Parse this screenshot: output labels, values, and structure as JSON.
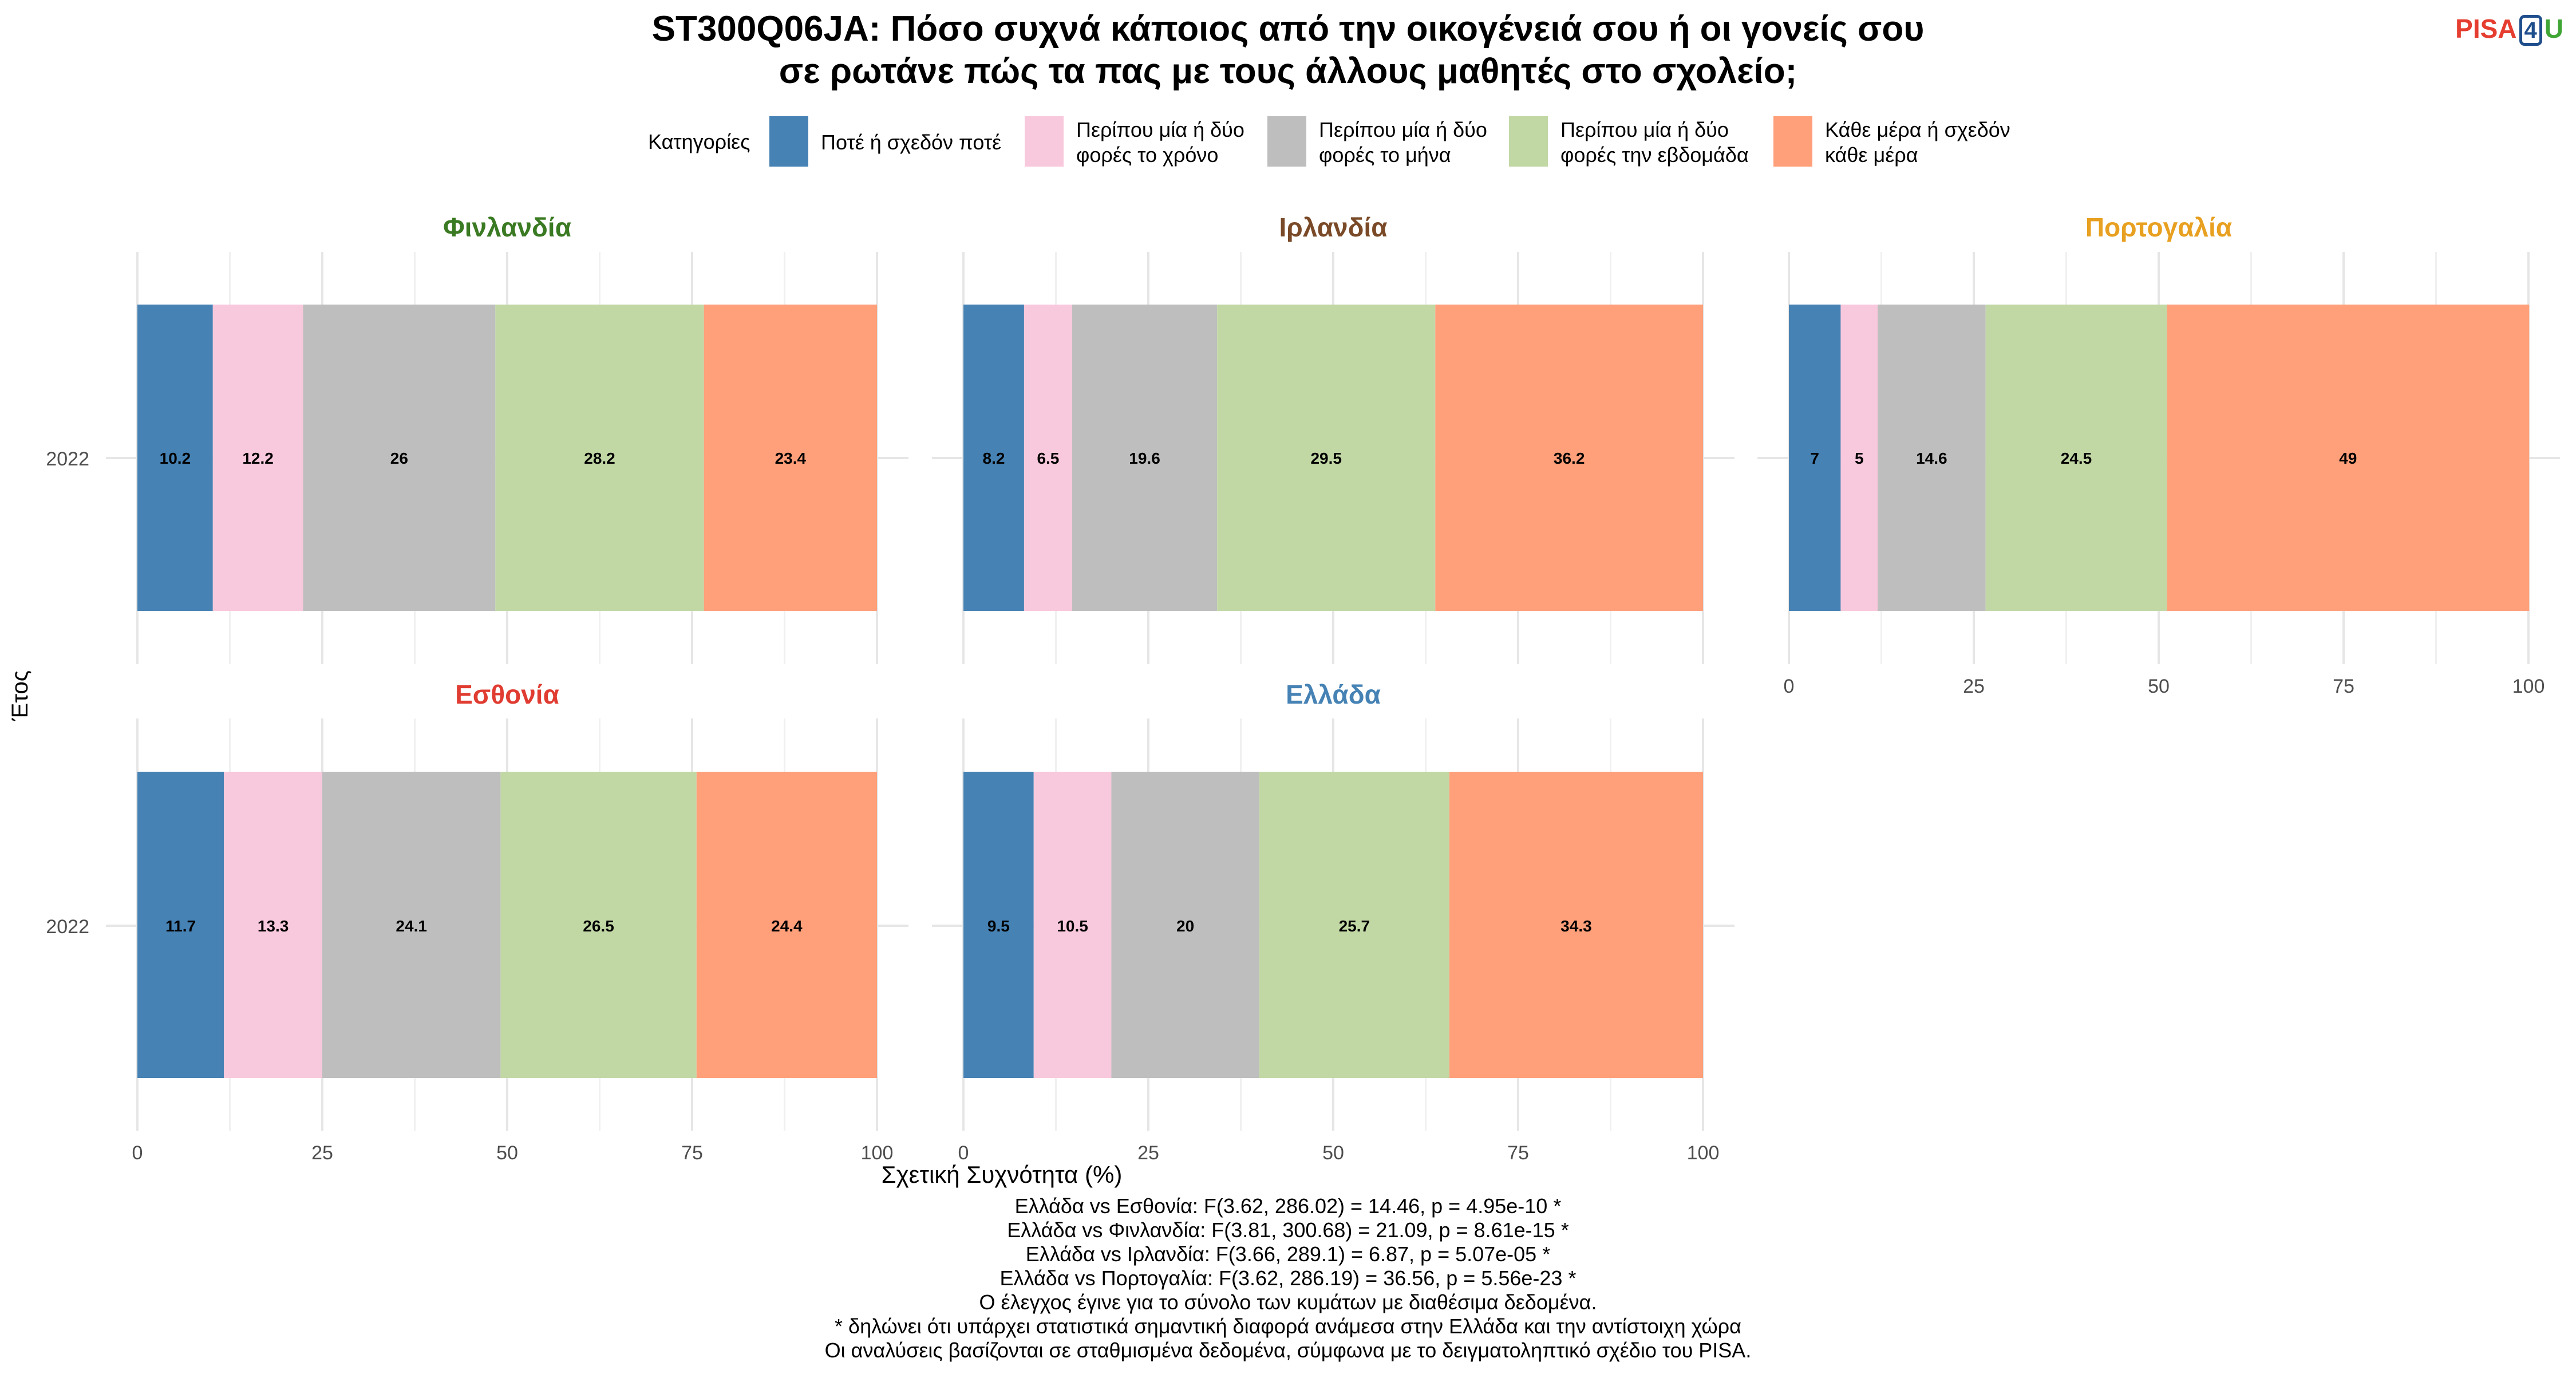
{
  "title_lines": [
    "ST300Q06JA: Πόσο συχνά κάποιος από την οικογένειά σου ή οι γονείς σου",
    "σε ρωτάνε πώς τα πας με τους άλλους μαθητές στο σχολείο;"
  ],
  "logo": {
    "pisa": "PISA",
    "four": "4",
    "u": "U"
  },
  "legend": {
    "title": "Κατηγορίες",
    "items": [
      {
        "label": "Ποτέ ή σχεδόν ποτέ",
        "color": "#4682b4"
      },
      {
        "label": "Περίπου μία ή δύο\nφορές το χρόνο",
        "color": "#f8c8dc"
      },
      {
        "label": "Περίπου μία ή δύο\nφορές το μήνα",
        "color": "#bebebe"
      },
      {
        "label": "Περίπου μία ή δύο\nφορές την εβδομάδα",
        "color": "#c1d8a5"
      },
      {
        "label": "Κάθε μέρα ή σχεδόν\nκάθε μέρα",
        "color": "#ffa07a"
      }
    ]
  },
  "chart_data": {
    "type": "bar",
    "orientation": "horizontal",
    "stacked": true,
    "xlabel": "Σχετική Συχνότητα (%)",
    "ylabel": "Έτος",
    "xlim": [
      0,
      100
    ],
    "xticks": [
      0,
      25,
      50,
      75,
      100
    ],
    "grid": true,
    "legend_position": "top",
    "categories": [
      "Ποτέ ή σχεδόν ποτέ",
      "Περίπου μία ή δύο φορές το χρόνο",
      "Περίπου μία ή δύο φορές το μήνα",
      "Περίπου μία ή δύο φορές την εβδομάδα",
      "Κάθε μέρα ή σχεδόν κάθε μέρα"
    ],
    "colors": [
      "#4682b4",
      "#f8c8dc",
      "#bebebe",
      "#c1d8a5",
      "#ffa07a"
    ],
    "panels": [
      {
        "country": "Φινλανδία",
        "color": "#3a7a22",
        "year": "2022",
        "values": [
          10.2,
          12.2,
          26,
          28.2,
          23.4
        ]
      },
      {
        "country": "Ιρλανδία",
        "color": "#7a4a28",
        "year": "2022",
        "values": [
          8.2,
          6.5,
          19.6,
          29.5,
          36.2
        ]
      },
      {
        "country": "Πορτογαλία",
        "color": "#e8a020",
        "year": "2022",
        "values": [
          7,
          5,
          14.6,
          24.5,
          49
        ]
      },
      {
        "country": "Εσθονία",
        "color": "#e03c31",
        "year": "2022",
        "values": [
          11.7,
          13.3,
          24.1,
          26.5,
          24.4
        ]
      },
      {
        "country": "Ελλάδα",
        "color": "#4682b4",
        "year": "2022",
        "values": [
          9.5,
          10.5,
          20,
          25.7,
          34.3
        ]
      }
    ]
  },
  "notes": [
    "Ελλάδα vs Εσθονία: F(3.62, 286.02) = 14.46, p = 4.95e-10 *",
    "Ελλάδα vs Φινλανδία: F(3.81, 300.68) = 21.09, p = 8.61e-15 *",
    "Ελλάδα vs Ιρλανδία: F(3.66, 289.1) = 6.87, p = 5.07e-05 *",
    "Ελλάδα vs Πορτογαλία: F(3.62, 286.19) = 36.56, p = 5.56e-23 *",
    "Ο έλεγχος έγινε για το σύνολο των κυμάτων με διαθέσιμα δεδομένα.",
    "* δηλώνει ότι υπάρχει στατιστικά σημαντική διαφορά ανάμεσα στην Ελλάδα και την αντίστοιχη χώρα",
    "Οι αναλύσεις βασίζονται σε σταθμισμένα δεδομένα, σύμφωνα με το δειγματοληπτικό σχέδιο του PISA."
  ]
}
